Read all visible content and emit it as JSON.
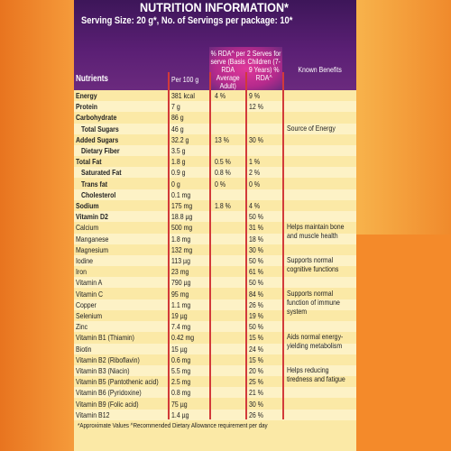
{
  "header": {
    "title": "NUTRITION INFORMATION*",
    "subtitle": "Serving Size: 20 g*, No. of Servings per package: 10*"
  },
  "table": {
    "columns": [
      "Nutrients",
      "Per 100 g",
      "% RDA^ per serve (Basis RDA Average Adult)",
      "2 Serves for Children (7-9 Years) % RDA^",
      "Known Benefits"
    ],
    "rows": [
      [
        "Energy",
        "381 kcal",
        "4 %",
        "9 %",
        null
      ],
      [
        "Protein",
        "7 g",
        null,
        "12 %",
        null
      ],
      [
        "Carbohydrate",
        "86 g",
        null,
        null,
        null
      ],
      [
        "Total Sugars",
        "46 g",
        null,
        null,
        "Source of Energy"
      ],
      [
        "Added Sugars",
        "32.2 g",
        "13 %",
        "30 %",
        null
      ],
      [
        "Dietary Fiber",
        "3.5 g",
        null,
        null,
        null
      ],
      [
        "Total Fat",
        "1.8 g",
        "0.5 %",
        "1 %",
        null
      ],
      [
        "Saturated Fat",
        "0.9 g",
        "0.8 %",
        "2 %",
        null
      ],
      [
        "Trans fat",
        "0 g",
        "0 %",
        "0 %",
        null
      ],
      [
        "Cholesterol",
        "0.1 mg",
        null,
        null,
        null
      ],
      [
        "Sodium",
        "175 mg",
        "1.8 %",
        "4 %",
        null
      ],
      [
        "Vitamin D2",
        "18.8 µg",
        null,
        "50 %",
        null
      ],
      [
        "Calcium",
        "500 mg",
        null,
        "31 %",
        "Helps maintain bone and muscle health"
      ],
      [
        "Manganese",
        "1.8 mg",
        null,
        "18 %",
        null
      ],
      [
        "Magnesium",
        "132 mg",
        null,
        "30 %",
        null
      ],
      [
        "Iodine",
        "113 µg",
        null,
        "50 %",
        "Supports normal cognitive functions"
      ],
      [
        "Iron",
        "23 mg",
        null,
        "61 %",
        null
      ],
      [
        "Vitamin A",
        "790 µg",
        null,
        "50 %",
        null
      ],
      [
        "Vitamin C",
        "95 mg",
        null,
        "84 %",
        "Supports normal function of immune system"
      ],
      [
        "Copper",
        "1.1 mg",
        null,
        "26 %",
        null
      ],
      [
        "Selenium",
        "19 µg",
        null,
        "19 %",
        null
      ],
      [
        "Zinc",
        "7.4 mg",
        null,
        "50 %",
        null
      ],
      [
        "Vitamin B1 (Thiamin)",
        "0.42 mg",
        null,
        "15 %",
        "Aids normal energy-yielding metabolism"
      ],
      [
        "Biotin",
        "15 µg",
        null,
        "24 %",
        null
      ],
      [
        "Vitamin B2 (Riboflavin)",
        "0.6 mg",
        null,
        "15 %",
        null
      ],
      [
        "Vitamin B3 (Niacin)",
        "5.5 mg",
        null,
        "20 %",
        "Helps reducing tiredness and fatigue"
      ],
      [
        "Vitamin B5 (Pantothenic acid)",
        "2.5 mg",
        null,
        "25 %",
        null
      ],
      [
        "Vitamin B6 (Pyridoxine)",
        "0.8 mg",
        null,
        "21 %",
        null
      ],
      [
        "Vitamin B9 (Folic acid)",
        "75 µg",
        null,
        "30 %",
        null
      ],
      [
        "Vitamin B12",
        "1.4 µg",
        null,
        "26 %",
        null
      ]
    ]
  },
  "footer": "*Approximate Values  ^Recommended Dietary Allowance requirement per day"
}
